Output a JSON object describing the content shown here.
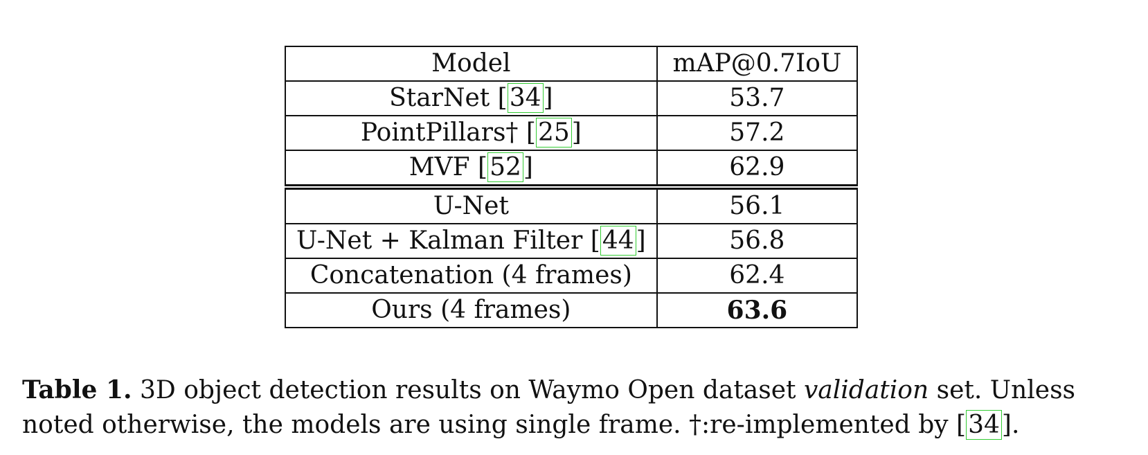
{
  "table": {
    "headers": [
      "Model",
      "mAP@0.7IoU"
    ],
    "rows": [
      {
        "model": "StarNet",
        "ref": "34",
        "value": "53.7"
      },
      {
        "model": "PointPillars† ",
        "ref": "25",
        "value": "57.2"
      },
      {
        "model": "MVF",
        "ref": "52",
        "value": "62.9"
      },
      {
        "model": "U-Net",
        "ref": "",
        "value": "56.1"
      },
      {
        "model": "U-Net + Kalman Filter",
        "ref": "44",
        "value": "56.8"
      },
      {
        "model": "Concatenation (4 frames)",
        "ref": "",
        "value": "62.4"
      },
      {
        "model": "Ours (4 frames)",
        "ref": "",
        "value": "63.6"
      }
    ]
  },
  "caption": {
    "label": "Table 1.",
    "text_1": "3D object detection results on Waymo Open dataset",
    "emph": "validation",
    "text_2": "set. Unless noted otherwise, the models are using single frame. †:re-implemented by",
    "ref": "34",
    "end": "."
  }
}
